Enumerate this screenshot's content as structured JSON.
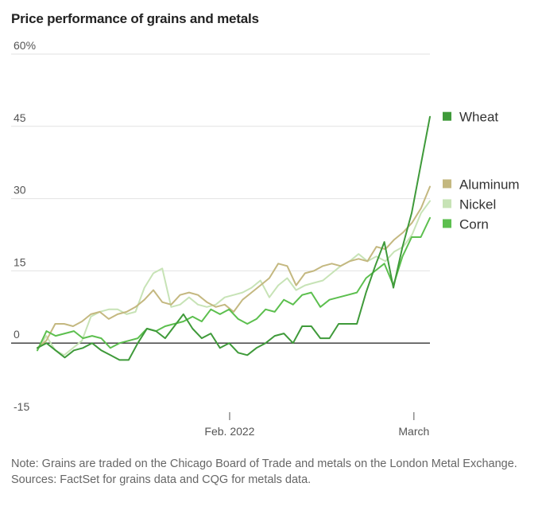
{
  "title": "Price performance of grains and metals",
  "notes": {
    "note": "Note: Grains are traded on the Chicago Board of Trade and metals on the London Metal Exchange.",
    "sources": "Sources: FactSet for grains data and CQG for metals data."
  },
  "colors": {
    "wheat": "#3f9a3a",
    "corn": "#5cbf4e",
    "aluminum": "#c4b880",
    "nickel": "#c7e3b6",
    "grid": "#e2e2e2",
    "zero": "#333333",
    "text": "#555555"
  },
  "chart_data": {
    "type": "line",
    "title": "Price performance of grains and metals",
    "ylabel": "",
    "xlabel": "",
    "ylim": [
      -15,
      60
    ],
    "xlim": [
      0,
      49
    ],
    "yticks": [
      {
        "value": 60,
        "label": "60%"
      },
      {
        "value": 45,
        "label": "45"
      },
      {
        "value": 30,
        "label": "30"
      },
      {
        "value": 15,
        "label": "15"
      },
      {
        "value": 0,
        "label": "0"
      },
      {
        "value": -15,
        "label": "-15"
      }
    ],
    "xticks": [
      {
        "value": 24,
        "label": "Feb. 2022"
      },
      {
        "value": 47,
        "label": "March"
      }
    ],
    "legend": [
      {
        "key": "wheat",
        "label": "Wheat",
        "value": 47
      },
      {
        "key": "aluminum",
        "label": "Aluminum",
        "value": 33
      },
      {
        "key": "nickel",
        "label": "Nickel",
        "value": 29
      },
      {
        "key": "corn",
        "label": "Corn",
        "value": 26
      }
    ],
    "series": [
      {
        "key": "nickel",
        "name": "Nickel",
        "values": [
          -1.5,
          1.5,
          -1.5,
          -2.5,
          -1,
          0.5,
          5.5,
          6.5,
          7,
          7,
          6,
          6.5,
          11.5,
          14.5,
          15.5,
          7.5,
          8,
          9.5,
          8,
          7.5,
          8,
          9.5,
          10,
          10.5,
          11.5,
          13,
          9.5,
          12,
          13.5,
          11,
          12,
          12.5,
          13,
          14.5,
          16,
          17,
          18.5,
          17,
          18,
          17,
          19,
          20,
          22.5,
          27,
          29.5
        ]
      },
      {
        "key": "aluminum",
        "name": "Aluminum",
        "values": [
          -1,
          0.5,
          4,
          4,
          3.5,
          4.5,
          6,
          6.5,
          5,
          6,
          6.5,
          7.5,
          9,
          11,
          8.5,
          8,
          10,
          10.5,
          10,
          8.5,
          7.5,
          8,
          6.5,
          9,
          10.5,
          12,
          13.5,
          16.5,
          16,
          12,
          14.5,
          15,
          16,
          16.5,
          16,
          17,
          17.5,
          17,
          20,
          19.5,
          21.5,
          23,
          25,
          28,
          32.5
        ]
      },
      {
        "key": "corn",
        "name": "Corn",
        "values": [
          -1.5,
          2.5,
          1.5,
          2,
          2.5,
          1,
          1.5,
          1,
          -1,
          0,
          0.5,
          1,
          3,
          2.5,
          3.5,
          4,
          4.5,
          5.5,
          4.5,
          7,
          6,
          7,
          5,
          4,
          5,
          7,
          6.5,
          9,
          8,
          10,
          10.5,
          7.5,
          9,
          9.5,
          10,
          10.5,
          13.5,
          15,
          16.5,
          12,
          18,
          22,
          22,
          26
        ]
      },
      {
        "key": "wheat",
        "name": "Wheat",
        "values": [
          -1,
          0,
          -1.5,
          -3,
          -1.5,
          -1,
          0,
          -1.5,
          -2.5,
          -3.5,
          -3.5,
          0,
          3,
          2.5,
          1,
          3.5,
          6,
          3,
          1,
          2,
          -1,
          0,
          -2,
          -2.5,
          -1,
          0,
          1.5,
          2,
          0,
          3.5,
          3.5,
          1,
          1,
          4,
          4,
          4,
          10.5,
          16,
          21,
          11.5,
          20,
          27,
          37,
          47
        ]
      }
    ]
  }
}
